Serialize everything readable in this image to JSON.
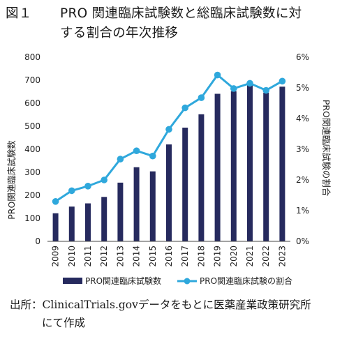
{
  "title": {
    "number": "図１",
    "line1": "PRO 関連臨床試験数と総臨床試験数に対",
    "line2": "する割合の年次推移"
  },
  "source": {
    "line1": "出所：ClinicalTrials.govデータをもとに医薬産業政策研究所",
    "line2": "にて作成"
  },
  "chart_data": {
    "type": "bar",
    "categories": [
      "2009",
      "2010",
      "2011",
      "2012",
      "2013",
      "2014",
      "2015",
      "2016",
      "2017",
      "2018",
      "2019",
      "2020",
      "2021",
      "2022",
      "2023"
    ],
    "series": [
      {
        "name": "PRO関連臨床試験数",
        "type": "bar",
        "axis": "left",
        "color": "#262a5e",
        "values": [
          122,
          151,
          165,
          193,
          255,
          322,
          304,
          421,
          494,
          552,
          641,
          652,
          678,
          646,
          672
        ]
      },
      {
        "name": "PRO関連臨床試験の割合",
        "type": "line",
        "axis": "right",
        "color": "#2fa8dc",
        "values": [
          1.3,
          1.65,
          1.8,
          2.0,
          2.68,
          2.95,
          2.78,
          3.65,
          4.35,
          4.68,
          5.42,
          4.98,
          5.15,
          4.92,
          5.22
        ]
      }
    ],
    "ylabel": "PRO関連臨床試験数",
    "ylabel_right": "PRO関連臨床試験の割合",
    "ylim": [
      0,
      800
    ],
    "ylim_right": [
      0,
      6
    ],
    "yticks": [
      "0",
      "100",
      "200",
      "300",
      "400",
      "500",
      "600",
      "700",
      "800"
    ],
    "yticks_right": [
      "0%",
      "1%",
      "2%",
      "3%",
      "4%",
      "5%",
      "6%"
    ],
    "grid": false,
    "legend_position": "bottom"
  }
}
